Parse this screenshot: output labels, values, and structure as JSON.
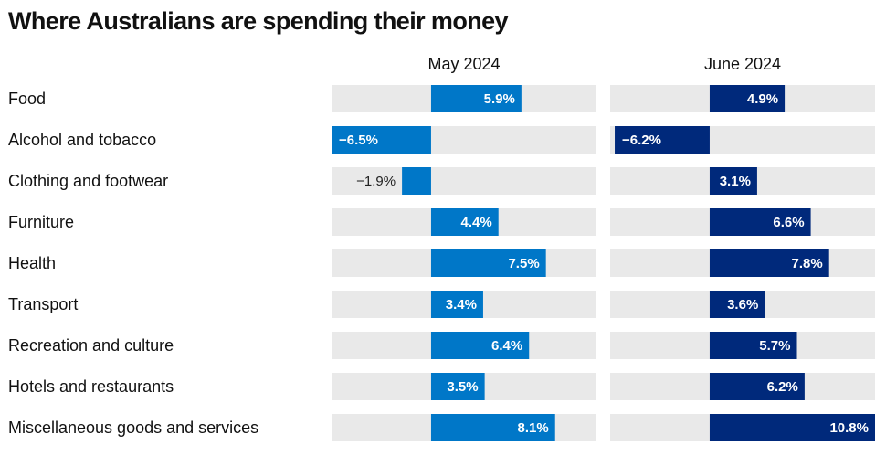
{
  "chart_data": {
    "type": "bar",
    "orientation": "horizontal",
    "title": "Where Australians are spending their money",
    "categories": [
      "Food",
      "Alcohol and tobacco",
      "Clothing and footwear",
      "Furniture",
      "Health",
      "Transport",
      "Recreation and culture",
      "Hotels and restaurants",
      "Miscellaneous goods and services"
    ],
    "series": [
      {
        "name": "May 2024",
        "color": "#0077c8",
        "values": [
          5.9,
          -6.5,
          -1.9,
          4.4,
          7.5,
          3.4,
          6.4,
          3.5,
          8.1
        ],
        "labels": [
          "5.9%",
          "−6.5%",
          "−1.9%",
          "4.4%",
          "7.5%",
          "3.4%",
          "6.4%",
          "3.5%",
          "8.1%"
        ]
      },
      {
        "name": "June 2024",
        "color": "#00297b",
        "values": [
          4.9,
          -6.2,
          3.1,
          6.6,
          7.8,
          3.6,
          5.7,
          6.2,
          10.8
        ],
        "labels": [
          "4.9%",
          "−6.2%",
          "3.1%",
          "6.6%",
          "7.8%",
          "3.6%",
          "5.7%",
          "6.2%",
          "10.8%"
        ]
      }
    ],
    "xlim": [
      -6.5,
      10.8
    ],
    "unit": "%",
    "track_color": "#e9e9e9",
    "xlabel": "",
    "ylabel": "",
    "grid": false,
    "legend": "none (panel headers)"
  }
}
